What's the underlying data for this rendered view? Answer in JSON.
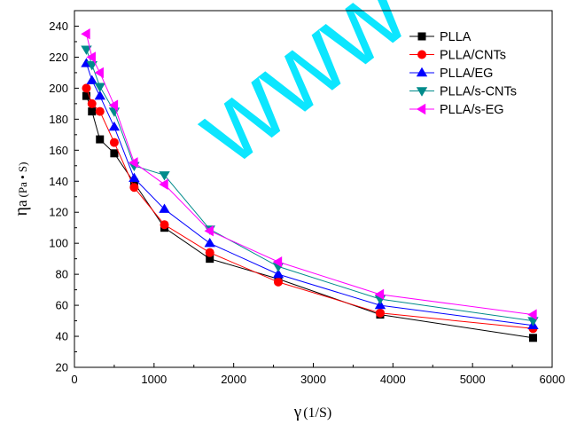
{
  "watermark": "www",
  "chart_data": {
    "type": "line",
    "xlabel": "γ",
    "xlabel_unit": "(1/S)",
    "ylabel": "η",
    "ylabel_sub": "a",
    "ylabel_unit": "(Pa • S)",
    "xlim": [
      0,
      6000
    ],
    "ylim": [
      20,
      250
    ],
    "xticks": [
      0,
      1000,
      2000,
      3000,
      4000,
      5000,
      6000
    ],
    "yticks": [
      20,
      40,
      60,
      80,
      100,
      120,
      140,
      160,
      180,
      200,
      220,
      240
    ],
    "legend_position": "top-right",
    "grid": false,
    "x": [
      150,
      220,
      320,
      500,
      750,
      1130,
      1700,
      2560,
      3840,
      5760
    ],
    "series": [
      {
        "name": "PLLA",
        "marker": "square",
        "color": "#000000",
        "values": [
          195,
          185,
          167,
          158,
          139,
          110,
          90,
          77,
          54,
          39
        ]
      },
      {
        "name": "PLLA/CNTs",
        "marker": "circle",
        "color": "#ff0000",
        "values": [
          200,
          190,
          185,
          165,
          136,
          112,
          94,
          75,
          55,
          45
        ]
      },
      {
        "name": "PLLA/EG",
        "marker": "triangle-up",
        "color": "#0000ff",
        "values": [
          216,
          205,
          195,
          175,
          142,
          122,
          100,
          80,
          60,
          47
        ]
      },
      {
        "name": "PLLA/s-CNTs",
        "marker": "triangle-down",
        "color": "#008b8b",
        "values": [
          225,
          215,
          201,
          185,
          150,
          144,
          109,
          85,
          64,
          50
        ]
      },
      {
        "name": "PLLA/s-EG",
        "marker": "triangle-left",
        "color": "#ff00ff",
        "values": [
          235,
          220,
          210,
          189,
          152,
          138,
          108,
          88,
          67,
          54
        ]
      }
    ]
  }
}
